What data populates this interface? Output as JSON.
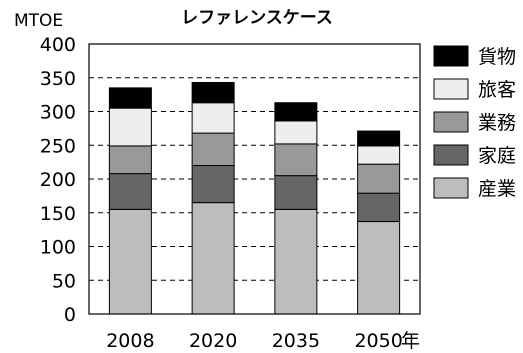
{
  "chart_data": {
    "type": "bar",
    "stacked": true,
    "title": "レファレンスケース",
    "ylabel": "MTOE",
    "xlabel": "年",
    "ylim": [
      0,
      400
    ],
    "yticks": [
      0,
      50,
      100,
      150,
      200,
      250,
      300,
      350,
      400
    ],
    "grid": "horizontal dashed",
    "legend_position": "right",
    "categories": [
      "2008",
      "2020",
      "2035",
      "2050"
    ],
    "series": [
      {
        "name": "産業",
        "color": "#bdbdbd",
        "values": [
          155,
          165,
          155,
          137
        ]
      },
      {
        "name": "家庭",
        "color": "#666666",
        "values": [
          53,
          55,
          50,
          42
        ]
      },
      {
        "name": "業務",
        "color": "#999999",
        "values": [
          41,
          48,
          47,
          43
        ]
      },
      {
        "name": "旅客",
        "color": "#eeeeee",
        "values": [
          56,
          45,
          34,
          27
        ]
      },
      {
        "name": "貨物",
        "color": "#000000",
        "values": [
          30,
          30,
          27,
          22
        ]
      }
    ],
    "legend_order": [
      "貨物",
      "旅客",
      "業務",
      "家庭",
      "産業"
    ]
  }
}
